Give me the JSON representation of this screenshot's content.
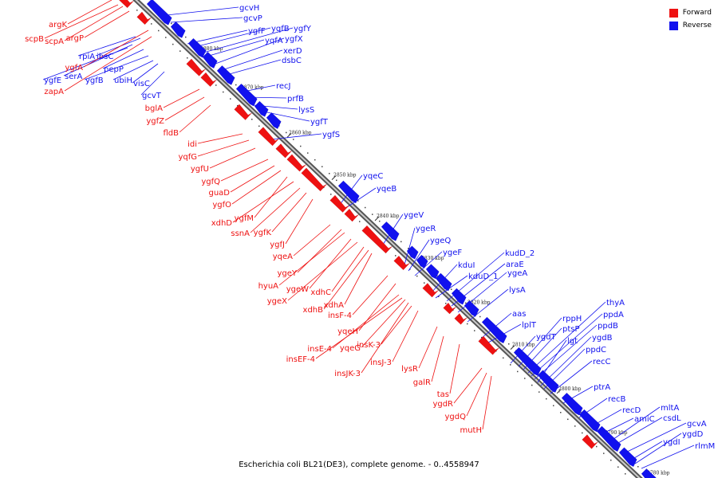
{
  "legend": {
    "forward_label": "Forward",
    "reverse_label": "Reverse",
    "forward_color": "#ee1111",
    "reverse_color": "#1111ee"
  },
  "caption": "Escherichia coli BL21(DE3), complete genome. - 0..4558947",
  "ticks": [
    "2880 kbp",
    "2870 kbp",
    "2860 kbp",
    "2850 kbp",
    "2840 kbp",
    "2830 kbp",
    "2820 kbp",
    "2810 kbp",
    "2800 kbp",
    "2790 kbp",
    "2780 kbp"
  ],
  "reverse_labels": [
    "gcvH",
    "gcvP",
    "ygfF",
    "yqfB",
    "ygfY",
    "yqfA",
    "ygfX",
    "xerD",
    "dsbC",
    "recJ",
    "prfB",
    "lysS",
    "ygfT",
    "ygfS",
    "yqeC",
    "yqeB",
    "ygeV",
    "ygeR",
    "ygeQ",
    "ygeF",
    "kduI",
    "kudD_2",
    "araE",
    "kduD_1",
    "ygeA",
    "lysA",
    "aas",
    "lplT",
    "rppH",
    "ygdT",
    "ptsP",
    "thyA",
    "ppdA",
    "ppdB",
    "lgt",
    "ygdB",
    "ppdC",
    "recC",
    "ptrA",
    "recB",
    "recD",
    "amiC",
    "mltA",
    "csdL",
    "gcvA",
    "ygdI",
    "ygdD",
    "rlmM",
    "rpiA",
    "ibsC",
    "serA",
    "ygfE",
    "pepP",
    "ygfB",
    "ubiH",
    "visC",
    "gcvT"
  ],
  "forward_labels": [
    "argK",
    "scpB",
    "scpA",
    "argP",
    "ygfA",
    "zapA",
    "bglA",
    "ygfZ",
    "fldB",
    "idi",
    "yqfG",
    "ygfU",
    "ygfQ",
    "guaD",
    "ygfO",
    "ygfM",
    "xdhD",
    "ssnA",
    "ygfK",
    "ygfJ",
    "yqeA",
    "ygeY",
    "hyuA",
    "ygeW",
    "xdhC",
    "ygeX",
    "xdhA",
    "xdhB",
    "insF-4",
    "yqeH",
    "insE-4",
    "yqeG",
    "insK-3",
    "insEF-4",
    "insJ-3",
    "insJK-3",
    "lysR",
    "galR",
    "tas",
    "ygdR",
    "ygdQ",
    "mutH"
  ]
}
